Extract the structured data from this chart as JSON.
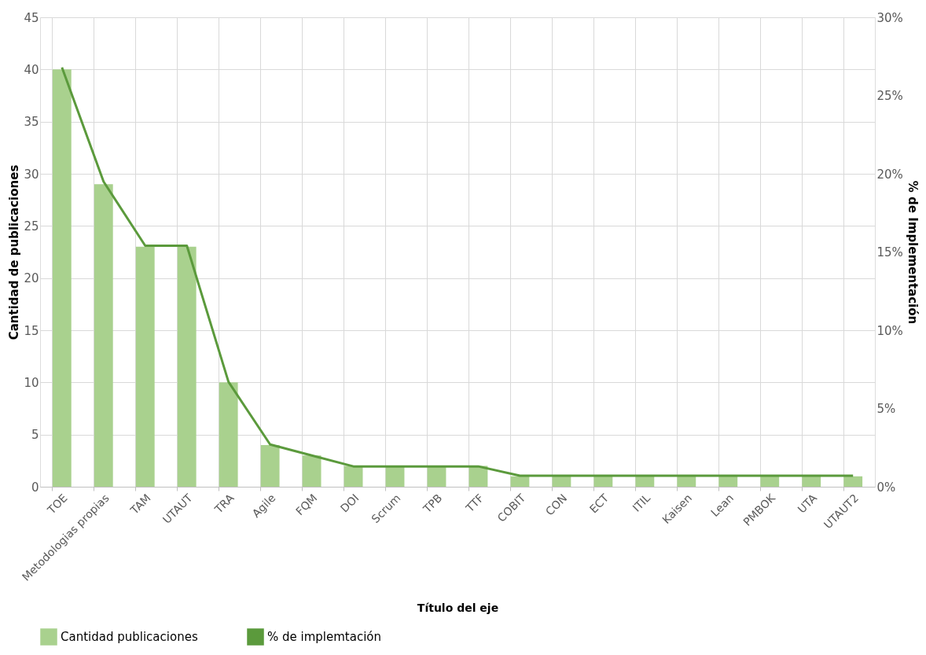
{
  "chart_data": {
    "type": "bar",
    "xlabel": "Título del eje",
    "ylabel": "Cantidad de publicaciones",
    "y2label": "% de Implementación",
    "categories": [
      "TOE",
      "Metodologias propias",
      "TAM",
      "UTAUT",
      "TRA",
      "Agile",
      "FQM",
      "DOI",
      "Scrum",
      "TPB",
      "TTF",
      "COBIT",
      "CON",
      "ECT",
      "ITIL",
      "Kaisen",
      "Lean",
      "PMBOK",
      "UTA",
      "UTAUT2"
    ],
    "series": [
      {
        "name": "Cantidad publicaciones",
        "color": "#a9d18e",
        "values": [
          40,
          29,
          23,
          23,
          10,
          4,
          3,
          2,
          2,
          2,
          2,
          1,
          1,
          1,
          1,
          1,
          1,
          1,
          1,
          1
        ]
      },
      {
        "name": "% de implemtación",
        "type": "line",
        "axis": "y2",
        "color": "#5b9a3c",
        "values": [
          26.8,
          19.5,
          15.4,
          15.4,
          6.7,
          2.7,
          2.0,
          1.3,
          1.3,
          1.3,
          1.3,
          0.7,
          0.7,
          0.7,
          0.7,
          0.7,
          0.7,
          0.7,
          0.7,
          0.7
        ]
      }
    ],
    "ylim": [
      0,
      45
    ],
    "yticks": [
      0,
      5,
      10,
      15,
      20,
      25,
      30,
      35,
      40,
      45
    ],
    "y2lim": [
      0,
      30
    ],
    "y2ticks": [
      {
        "value": 0,
        "label": "0%"
      },
      {
        "value": 5,
        "label": "5%"
      },
      {
        "value": 10,
        "label": "10%"
      },
      {
        "value": 15,
        "label": "15%"
      },
      {
        "value": 20,
        "label": "20%"
      },
      {
        "value": 25,
        "label": "25%"
      },
      {
        "value": 30,
        "label": "30%"
      }
    ],
    "grid": true,
    "legend": "bottom",
    "marker": "none",
    "line_style": "solid"
  }
}
